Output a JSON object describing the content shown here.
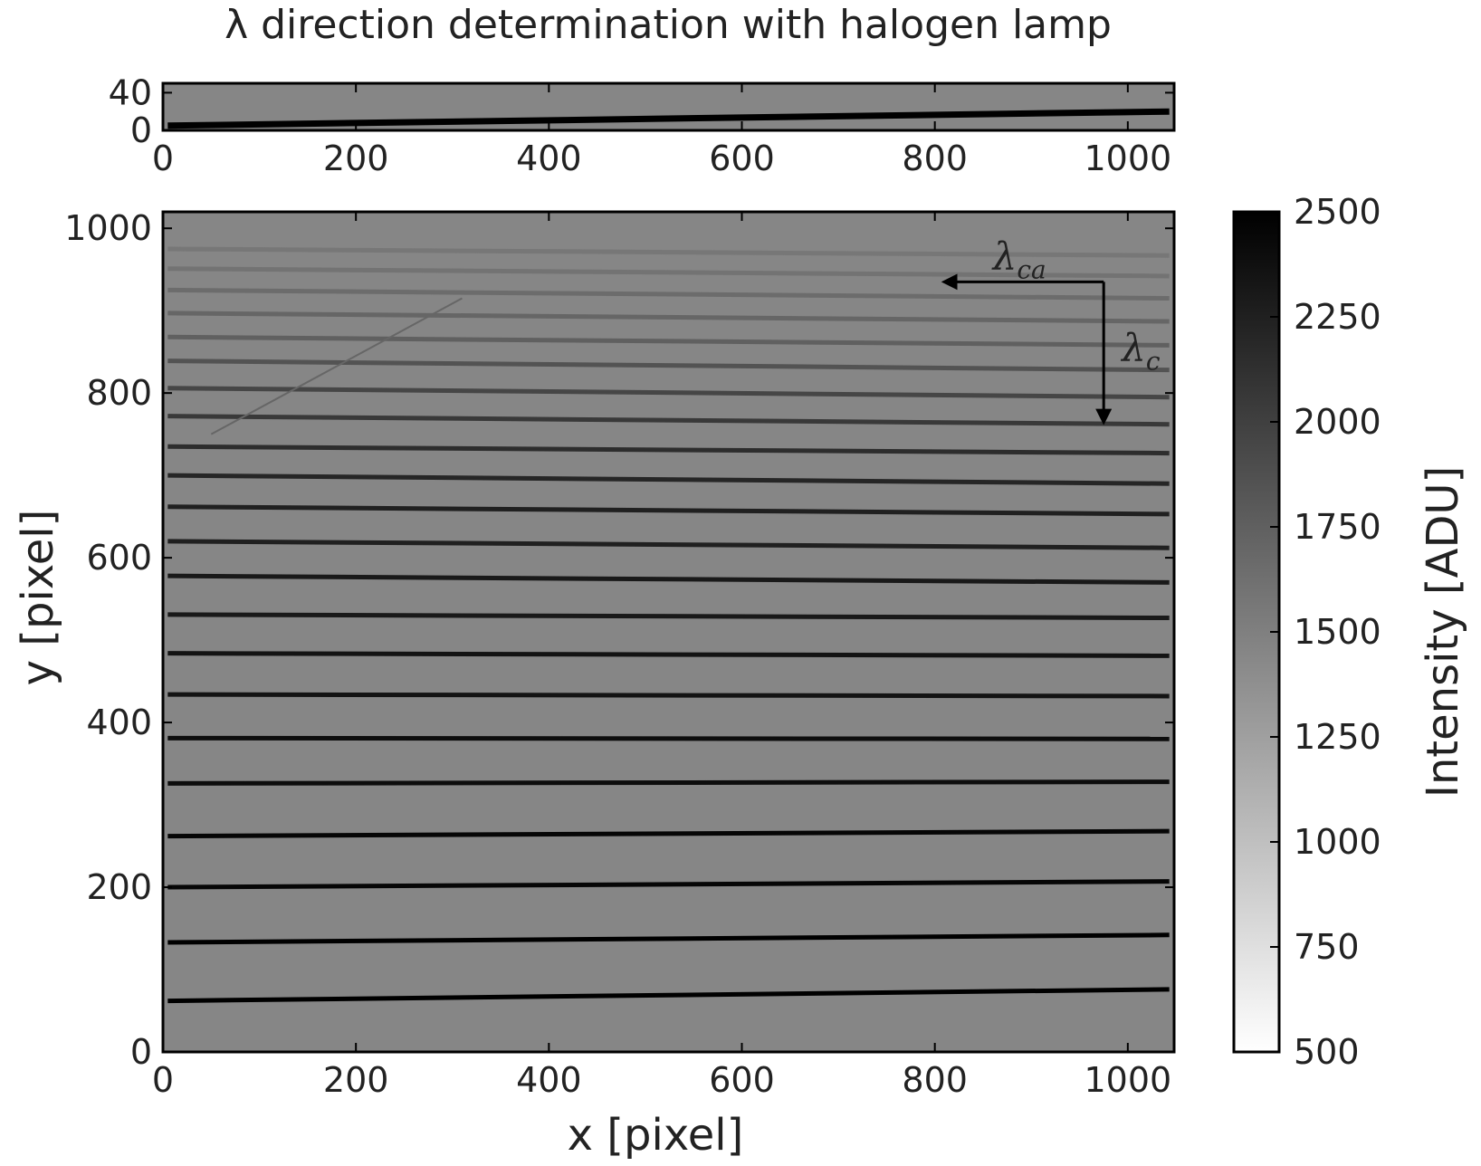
{
  "chart_data": {
    "type": "heatmap",
    "title": "λ direction determination with halogen lamp",
    "colormap": "gray_r",
    "background_intensity": 1450,
    "panels": [
      {
        "name": "top-strip",
        "xlim": [
          0,
          1048
        ],
        "ylim": [
          0,
          50
        ],
        "x_ticks": [
          "0",
          "200",
          "400",
          "600",
          "800",
          "1000"
        ],
        "y_ticks": [
          "0",
          "40"
        ],
        "trace": {
          "y_start": 5,
          "y_end": 20,
          "intensity": 2500
        }
      },
      {
        "name": "main-image",
        "xlim": [
          0,
          1048
        ],
        "ylim": [
          0,
          1020
        ],
        "xlabel": "x [pixel]",
        "ylabel": "y [pixel]",
        "x_ticks": [
          "0",
          "200",
          "400",
          "600",
          "800",
          "1000"
        ],
        "y_ticks": [
          "0",
          "200",
          "400",
          "600",
          "800",
          "1000"
        ],
        "orders": [
          {
            "y_start": 62,
            "y_end": 76,
            "intensity": 2500
          },
          {
            "y_start": 133,
            "y_end": 142,
            "intensity": 2500
          },
          {
            "y_start": 200,
            "y_end": 207,
            "intensity": 2450
          },
          {
            "y_start": 262,
            "y_end": 268,
            "intensity": 2450
          },
          {
            "y_start": 326,
            "y_end": 328,
            "intensity": 2400
          },
          {
            "y_start": 381,
            "y_end": 380,
            "intensity": 2400
          },
          {
            "y_start": 434,
            "y_end": 432,
            "intensity": 2350
          },
          {
            "y_start": 484,
            "y_end": 481,
            "intensity": 2350
          },
          {
            "y_start": 531,
            "y_end": 527,
            "intensity": 2300
          },
          {
            "y_start": 578,
            "y_end": 570,
            "intensity": 2300
          },
          {
            "y_start": 620,
            "y_end": 612,
            "intensity": 2250
          },
          {
            "y_start": 662,
            "y_end": 653,
            "intensity": 2250
          },
          {
            "y_start": 700,
            "y_end": 690,
            "intensity": 2200
          },
          {
            "y_start": 735,
            "y_end": 727,
            "intensity": 2150
          },
          {
            "y_start": 772,
            "y_end": 762,
            "intensity": 2050
          },
          {
            "y_start": 806,
            "y_end": 795,
            "intensity": 1950
          },
          {
            "y_start": 839,
            "y_end": 828,
            "intensity": 1850
          },
          {
            "y_start": 868,
            "y_end": 858,
            "intensity": 1750
          },
          {
            "y_start": 897,
            "y_end": 887,
            "intensity": 1700
          },
          {
            "y_start": 925,
            "y_end": 915,
            "intensity": 1650
          },
          {
            "y_start": 951,
            "y_end": 942,
            "intensity": 1600
          },
          {
            "y_start": 975,
            "y_end": 967,
            "intensity": 1570
          }
        ],
        "artifact_streak": {
          "x": [
            50,
            310
          ],
          "y": [
            750,
            915
          ],
          "intensity": 1700
        },
        "arrows": [
          {
            "label_main": "λ",
            "label_sub": "ca",
            "from": [
              975,
              935
            ],
            "to": [
              810,
              935
            ]
          },
          {
            "label_main": "λ",
            "label_sub": "c",
            "from": [
              975,
              935
            ],
            "to": [
              975,
              765
            ]
          }
        ]
      }
    ],
    "colorbar": {
      "label": "Intensity [ADU]",
      "range": [
        500,
        2500
      ],
      "ticks": [
        "500",
        "750",
        "1000",
        "1250",
        "1500",
        "1750",
        "2000",
        "2250",
        "2500"
      ]
    }
  }
}
